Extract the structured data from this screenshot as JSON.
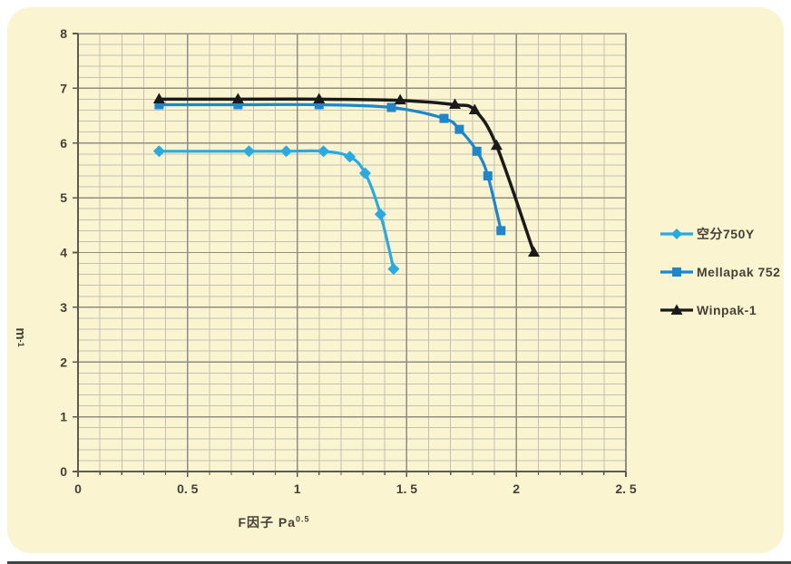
{
  "figure": {
    "page_bg": "#FFFFFF",
    "panel_bg": "#FBF4D0",
    "bottom_bar_color": "#3A4548",
    "text_color": "#453F37"
  },
  "chart_data": {
    "type": "line",
    "title": "",
    "xlabel_base": "F因子 Pa",
    "xlabel_sup": "0.5",
    "ylabel_base": "m",
    "ylabel_sup": "-1",
    "xlim": [
      0,
      2.5
    ],
    "ylim": [
      0,
      8
    ],
    "grid": true,
    "legend_position": "right",
    "x_tick_values": [
      0,
      0.5,
      1,
      1.5,
      2,
      2.5
    ],
    "x_tick_labels": [
      "0",
      "0. 5",
      "1",
      "1. 5",
      "2",
      "2. 5"
    ],
    "y_tick_values": [
      0,
      1,
      2,
      3,
      4,
      5,
      6,
      7,
      8
    ],
    "y_tick_labels": [
      "0",
      "1",
      "2",
      "3",
      "4",
      "5",
      "6",
      "7",
      "8"
    ],
    "x_minor_step": 0.1,
    "y_minor_step": 0.2,
    "x_major_step": 0.5,
    "y_major_step": 1,
    "axis_colors": {
      "grid_minor": "#C3BFB3",
      "grid_major": "#8F8C84",
      "axis": "#5E5A52"
    },
    "series": [
      {
        "name": "空分750Y",
        "color": "#29ABE2",
        "marker": "diamond",
        "points": [
          [
            0.37,
            5.85
          ],
          [
            0.78,
            5.85
          ],
          [
            0.95,
            5.85
          ],
          [
            1.12,
            5.85
          ],
          [
            1.24,
            5.75
          ],
          [
            1.31,
            5.45
          ],
          [
            1.38,
            4.7
          ],
          [
            1.44,
            3.7
          ]
        ]
      },
      {
        "name": "Mellapak 752",
        "color": "#1E86CB",
        "marker": "square",
        "points": [
          [
            0.37,
            6.7
          ],
          [
            0.73,
            6.7
          ],
          [
            1.1,
            6.7
          ],
          [
            1.43,
            6.65
          ],
          [
            1.67,
            6.45
          ],
          [
            1.74,
            6.25
          ],
          [
            1.82,
            5.85
          ],
          [
            1.87,
            5.4
          ],
          [
            1.93,
            4.4
          ]
        ]
      },
      {
        "name": "Winpak-1",
        "color": "#1A1A1A",
        "marker": "triangle",
        "points": [
          [
            0.37,
            6.8
          ],
          [
            0.73,
            6.8
          ],
          [
            1.1,
            6.8
          ],
          [
            1.47,
            6.78
          ],
          [
            1.72,
            6.7
          ],
          [
            1.81,
            6.6
          ],
          [
            1.91,
            5.95
          ],
          [
            2.08,
            4.0
          ]
        ]
      }
    ]
  }
}
